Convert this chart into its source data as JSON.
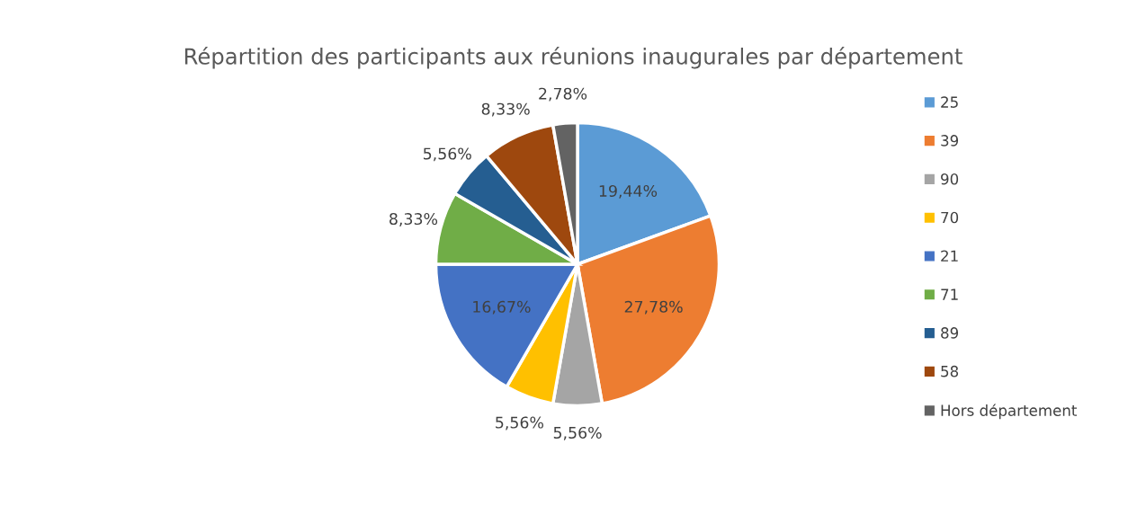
{
  "chart_data": {
    "type": "pie",
    "title": "Répartition des participants aux réunions inaugurales par département",
    "categories": [
      "25",
      "39",
      "90",
      "70",
      "21",
      "71",
      "89",
      "58",
      "Hors département"
    ],
    "values": [
      19.44,
      27.78,
      5.56,
      5.56,
      16.67,
      8.33,
      5.56,
      8.33,
      2.78
    ],
    "value_labels": [
      "19,44%",
      "27,78%",
      "5,56%",
      "5,56%",
      "16,67%",
      "8,33%",
      "5,56%",
      "8,33%",
      "2,78%"
    ],
    "colors": [
      "#5b9bd5",
      "#ed7d31",
      "#a5a5a5",
      "#ffc000",
      "#4472c4",
      "#70ad47",
      "#255e91",
      "#9e480e",
      "#636363"
    ],
    "legend": "right"
  }
}
